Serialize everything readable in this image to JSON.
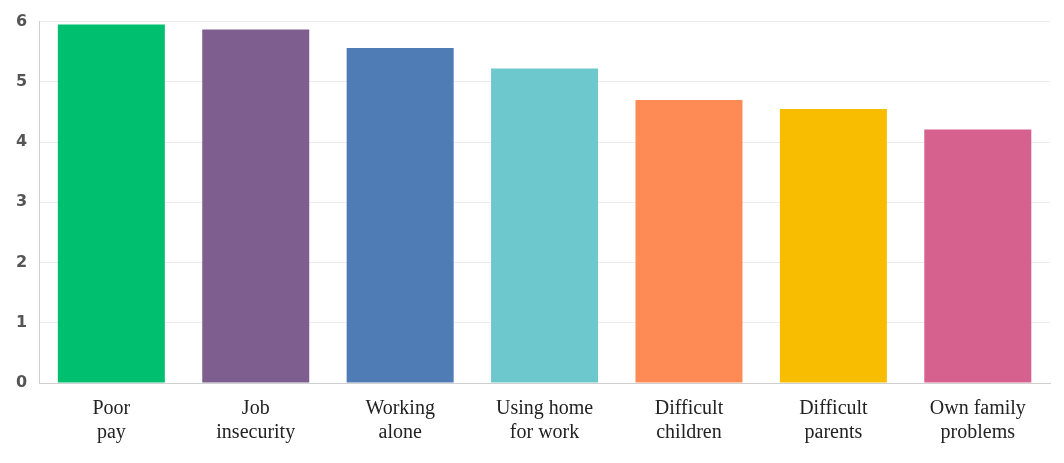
{
  "chart_data": {
    "type": "bar",
    "categories": [
      "Poor pay",
      "Job insecurity",
      "Working alone",
      "Using home for work",
      "Difficult children",
      "Difficult parents",
      "Own family problems"
    ],
    "values": [
      5.95,
      5.87,
      5.56,
      5.22,
      4.7,
      4.55,
      4.21
    ],
    "colors": [
      "#00bf6f",
      "#7d5e8f",
      "#4f7cb5",
      "#6cc8cc",
      "#fe8b55",
      "#f8bd00",
      "#d6608e"
    ],
    "ylim": [
      0,
      6
    ],
    "yticks": [
      0,
      1,
      2,
      3,
      4,
      5,
      6
    ],
    "grid": "y",
    "legend": false
  }
}
